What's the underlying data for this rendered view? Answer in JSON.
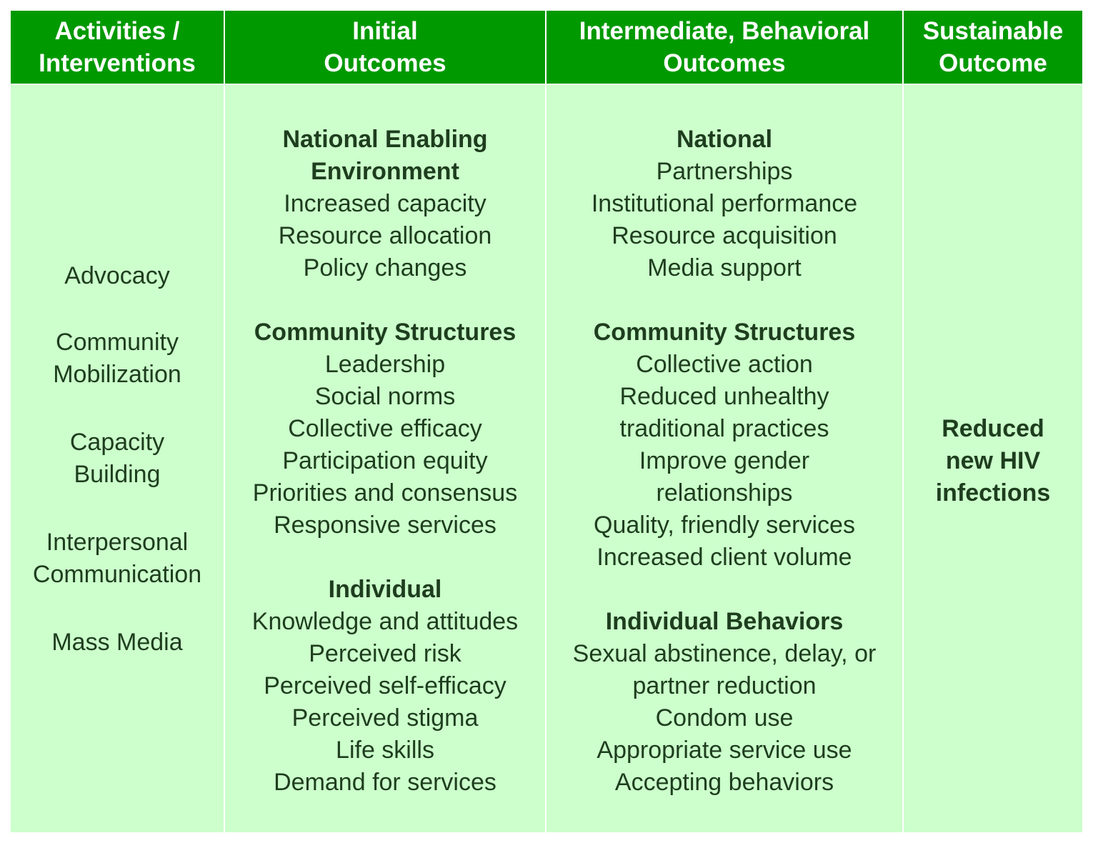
{
  "headers": {
    "activities": [
      "Activities /",
      "Interventions"
    ],
    "initial": [
      "Initial",
      "Outcomes"
    ],
    "intermediate": [
      "Intermediate, Behavioral",
      "Outcomes"
    ],
    "sustainable": [
      "Sustainable",
      "Outcome"
    ]
  },
  "activities": [
    [
      "Advocacy"
    ],
    [
      "Community",
      "Mobilization"
    ],
    [
      "Capacity",
      "Building"
    ],
    [
      "Interpersonal",
      "Communication"
    ],
    [
      "Mass Media"
    ]
  ],
  "initial": {
    "national": {
      "title": [
        "National Enabling",
        "Environment"
      ],
      "items": [
        "Increased capacity",
        "Resource allocation",
        "Policy changes"
      ]
    },
    "community": {
      "title": "Community Structures",
      "items": [
        "Leadership",
        "Social norms",
        "Collective efficacy",
        "Participation equity",
        "Priorities and consensus",
        "Responsive services"
      ]
    },
    "individual": {
      "title": "Individual",
      "items": [
        "Knowledge and attitudes",
        "Perceived risk",
        "Perceived self-efficacy",
        "Perceived stigma",
        "Life skills",
        "Demand for services"
      ]
    }
  },
  "intermediate": {
    "national": {
      "title": "National",
      "items": [
        "Partnerships",
        "Institutional performance",
        "Resource acquisition",
        "Media support"
      ]
    },
    "community": {
      "title": "Community Structures",
      "items": [
        "Collective action",
        "Reduced unhealthy",
        "traditional practices",
        "Improve gender",
        "relationships",
        "Quality, friendly services",
        "Increased client volume"
      ]
    },
    "individual": {
      "title": "Individual Behaviors",
      "items": [
        "Sexual abstinence, delay, or",
        "partner reduction",
        "Condom use",
        "Appropriate service use",
        "Accepting behaviors"
      ]
    }
  },
  "sustainable": [
    "Reduced",
    "new HIV",
    "infections"
  ]
}
